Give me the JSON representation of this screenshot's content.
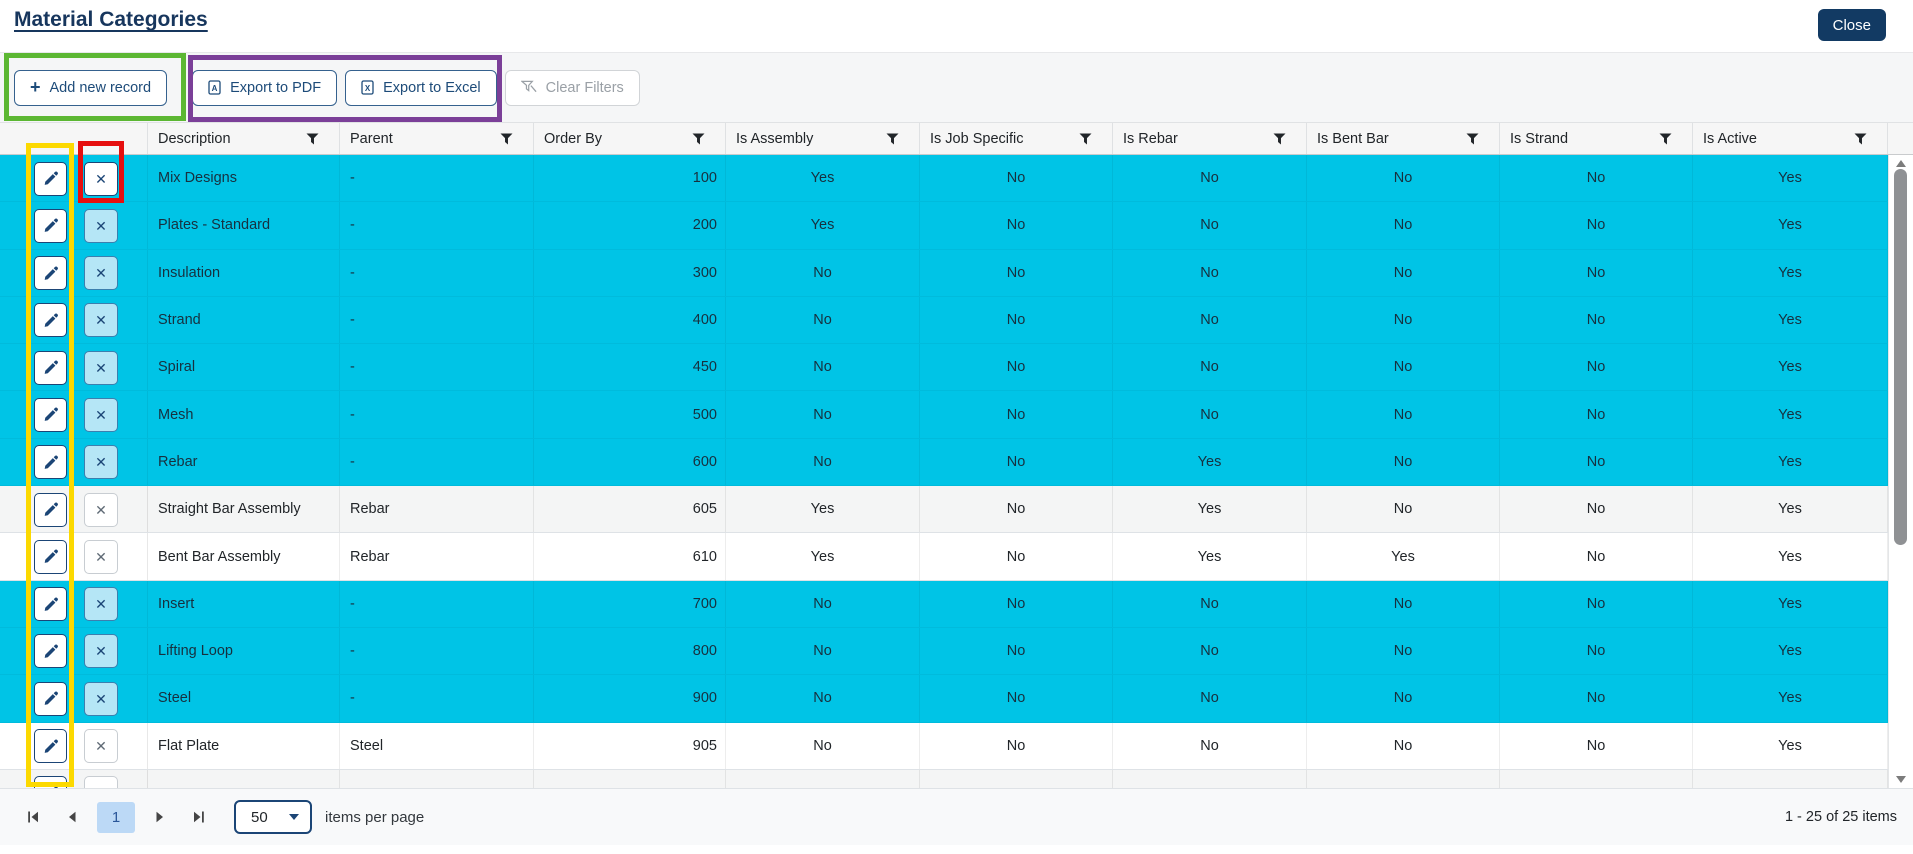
{
  "window": {
    "title": "Material Categories",
    "close_label": "Close"
  },
  "toolbar": {
    "add_label": "Add new record",
    "export_pdf_label": "Export to PDF",
    "export_excel_label": "Export to Excel",
    "clear_filters_label": "Clear Filters"
  },
  "icons": {
    "add_icon": "+",
    "delete_icon": "✕",
    "filter_icon": "funnel",
    "edit_icon": "pencil",
    "pdf_file_letter": "A",
    "excel_file_letter": "X"
  },
  "table": {
    "columns": [
      "Description",
      "Parent",
      "Order By",
      "Is Assembly",
      "Is Job Specific",
      "Is Rebar",
      "Is Bent Bar",
      "Is Strand",
      "Is Active"
    ],
    "rows": [
      {
        "description": "Mix Designs",
        "parent": "-",
        "order_by": "100",
        "is_assembly": "Yes",
        "is_job_specific": "No",
        "is_rebar": "No",
        "is_bent_bar": "No",
        "is_strand": "No",
        "is_active": "Yes",
        "style": "cyan"
      },
      {
        "description": "Plates - Standard",
        "parent": "-",
        "order_by": "200",
        "is_assembly": "Yes",
        "is_job_specific": "No",
        "is_rebar": "No",
        "is_bent_bar": "No",
        "is_strand": "No",
        "is_active": "Yes",
        "style": "cyan"
      },
      {
        "description": "Insulation",
        "parent": "-",
        "order_by": "300",
        "is_assembly": "No",
        "is_job_specific": "No",
        "is_rebar": "No",
        "is_bent_bar": "No",
        "is_strand": "No",
        "is_active": "Yes",
        "style": "cyan"
      },
      {
        "description": "Strand",
        "parent": "-",
        "order_by": "400",
        "is_assembly": "No",
        "is_job_specific": "No",
        "is_rebar": "No",
        "is_bent_bar": "No",
        "is_strand": "No",
        "is_active": "Yes",
        "style": "cyan"
      },
      {
        "description": "Spiral",
        "parent": "-",
        "order_by": "450",
        "is_assembly": "No",
        "is_job_specific": "No",
        "is_rebar": "No",
        "is_bent_bar": "No",
        "is_strand": "No",
        "is_active": "Yes",
        "style": "cyan"
      },
      {
        "description": "Mesh",
        "parent": "-",
        "order_by": "500",
        "is_assembly": "No",
        "is_job_specific": "No",
        "is_rebar": "No",
        "is_bent_bar": "No",
        "is_strand": "No",
        "is_active": "Yes",
        "style": "cyan"
      },
      {
        "description": "Rebar",
        "parent": "-",
        "order_by": "600",
        "is_assembly": "No",
        "is_job_specific": "No",
        "is_rebar": "Yes",
        "is_bent_bar": "No",
        "is_strand": "No",
        "is_active": "Yes",
        "style": "cyan"
      },
      {
        "description": "Straight Bar Assembly",
        "parent": "Rebar",
        "order_by": "605",
        "is_assembly": "Yes",
        "is_job_specific": "No",
        "is_rebar": "Yes",
        "is_bent_bar": "No",
        "is_strand": "No",
        "is_active": "Yes",
        "style": "gray"
      },
      {
        "description": "Bent Bar Assembly",
        "parent": "Rebar",
        "order_by": "610",
        "is_assembly": "Yes",
        "is_job_specific": "No",
        "is_rebar": "Yes",
        "is_bent_bar": "Yes",
        "is_strand": "No",
        "is_active": "Yes",
        "style": "white"
      },
      {
        "description": "Insert",
        "parent": "-",
        "order_by": "700",
        "is_assembly": "No",
        "is_job_specific": "No",
        "is_rebar": "No",
        "is_bent_bar": "No",
        "is_strand": "No",
        "is_active": "Yes",
        "style": "cyan"
      },
      {
        "description": "Lifting Loop",
        "parent": "-",
        "order_by": "800",
        "is_assembly": "No",
        "is_job_specific": "No",
        "is_rebar": "No",
        "is_bent_bar": "No",
        "is_strand": "No",
        "is_active": "Yes",
        "style": "cyan"
      },
      {
        "description": "Steel",
        "parent": "-",
        "order_by": "900",
        "is_assembly": "No",
        "is_job_specific": "No",
        "is_rebar": "No",
        "is_bent_bar": "No",
        "is_strand": "No",
        "is_active": "Yes",
        "style": "cyan"
      },
      {
        "description": "Flat Plate",
        "parent": "Steel",
        "order_by": "905",
        "is_assembly": "No",
        "is_job_specific": "No",
        "is_rebar": "No",
        "is_bent_bar": "No",
        "is_strand": "No",
        "is_active": "Yes",
        "style": "white"
      },
      {
        "description": "",
        "parent": "",
        "order_by": "",
        "is_assembly": "",
        "is_job_specific": "",
        "is_rebar": "",
        "is_bent_bar": "",
        "is_strand": "",
        "is_active": "",
        "style": "gray",
        "partial": true
      }
    ]
  },
  "pager": {
    "current_page": "1",
    "page_size": "50",
    "items_per_page_label": "items per page",
    "range_label": "1 - 25 of 25 items"
  },
  "colors": {
    "highlight_row": "#00c4e6",
    "accent_navy": "#1b4576",
    "close_button_bg": "#123a63",
    "annotation_green": "#5cb733",
    "annotation_purple": "#7b3f98",
    "annotation_yellow": "#fcd900",
    "annotation_red": "#e60f0f"
  }
}
